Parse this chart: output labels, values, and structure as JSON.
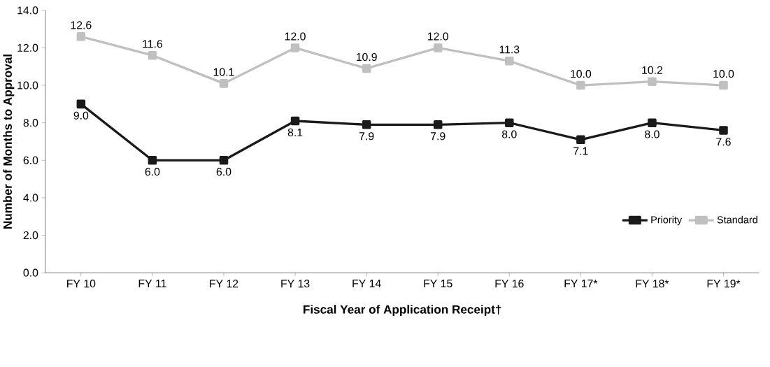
{
  "chart_data": {
    "type": "line",
    "xlabel": "Fiscal Year of Application Receipt†",
    "ylabel": "Number of Months to Approval",
    "categories": [
      "FY 10",
      "FY 11",
      "FY 12",
      "FY 13",
      "FY 14",
      "FY 15",
      "FY 16",
      "FY 17*",
      "FY 18*",
      "FY 19*"
    ],
    "series": [
      {
        "name": "Priority",
        "color": "#1a1a1a",
        "values": [
          9.0,
          6.0,
          6.0,
          8.1,
          7.9,
          7.9,
          8.0,
          7.1,
          8.0,
          7.6
        ],
        "value_labels": [
          "9.0",
          "6.0",
          "6.0",
          "8.1",
          "7.9",
          "7.9",
          "8.0",
          "7.1",
          "8.0",
          "7.6"
        ]
      },
      {
        "name": "Standard",
        "color": "#c0c0c0",
        "values": [
          12.6,
          11.6,
          10.1,
          12.0,
          10.9,
          12.0,
          11.3,
          10.0,
          10.2,
          10.0
        ],
        "value_labels": [
          "12.6",
          "11.6",
          "10.1",
          "12.0",
          "10.9",
          "12.0",
          "11.3",
          "10.0",
          "10.2",
          "10.0"
        ]
      }
    ],
    "ylim": [
      0,
      14
    ],
    "yticks": [
      {
        "value": 0,
        "label": "0.0"
      },
      {
        "value": 2,
        "label": "2.0"
      },
      {
        "value": 4,
        "label": "4.0"
      },
      {
        "value": 6,
        "label": "6.0"
      },
      {
        "value": 8,
        "label": "8.0"
      },
      {
        "value": 10,
        "label": "10.0"
      },
      {
        "value": 12,
        "label": "12.0"
      },
      {
        "value": 14,
        "label": "14.0"
      }
    ],
    "grid": false,
    "legend": "bottom right",
    "marker": "square",
    "line_style": "solid"
  }
}
